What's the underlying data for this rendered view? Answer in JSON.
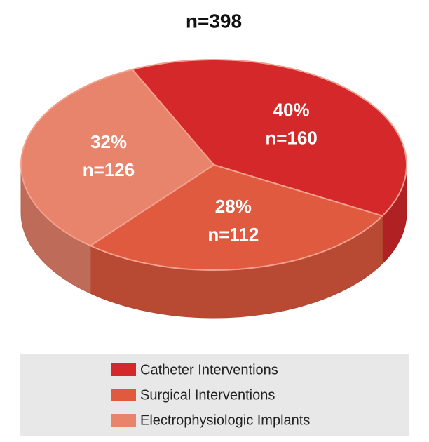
{
  "chart_data": {
    "type": "pie3d",
    "title": "n=398",
    "categories": [
      "Catheter Interventions",
      "Surgical Interventions",
      "Electrophysiologic Implants"
    ],
    "values": [
      40,
      28,
      32
    ],
    "value_labels": [
      "40%",
      "28%",
      "32%"
    ],
    "counts": [
      160,
      112,
      126
    ],
    "count_labels": [
      "n=160",
      "n=112",
      "n=126"
    ],
    "colors": [
      "#d5282a",
      "#e05a40",
      "#e8836c"
    ],
    "legend": "bottom"
  }
}
